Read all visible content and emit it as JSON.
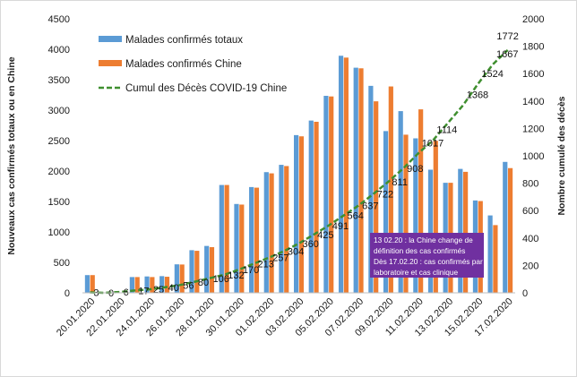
{
  "chart_data": {
    "type": "bar",
    "title": "",
    "categories": [
      "20.01.2020",
      "21.01.2020",
      "22.01.2020",
      "23.01.2020",
      "24.01.2020",
      "25.01.2020",
      "26.01.2020",
      "27.01.2020",
      "28.01.2020",
      "29.01.2020",
      "30.01.2020",
      "31.01.2020",
      "01.02.2020",
      "02.02.2020",
      "03.02.2020",
      "04.02.2020",
      "05.02.2020",
      "06.02.2020",
      "07.02.2020",
      "08.02.2020",
      "09.02.2020",
      "10.02.2020",
      "11.02.2020",
      "12.02.2020",
      "13.02.2020",
      "14.02.2020",
      "15.02.2020",
      "16.02.2020",
      "17.02.2020"
    ],
    "x_tick_labels": [
      "20.01.2020",
      "22.01.2020",
      "24.01.2020",
      "26.01.2020",
      "28.01.2020",
      "30.01.2020",
      "01.02.2020",
      "03.02.2020",
      "05.02.2020",
      "07.02.2020",
      "09.02.2020",
      "11.02.2020",
      "13.02.2020",
      "15.02.2020",
      "17.02.2020"
    ],
    "series": [
      {
        "name": "Malades confirmés totaux",
        "axis": "left",
        "kind": "bar",
        "color": "#5b9bd5",
        "values": [
          291,
          0,
          0,
          259,
          269,
          274,
          468,
          700,
          770,
          1771,
          1459,
          1737,
          1982,
          2102,
          2590,
          2829,
          3235,
          3893,
          3697,
          3399,
          2656,
          2984,
          2537,
          2022,
          1807,
          2035,
          1517,
          1271,
          2150
        ]
      },
      {
        "name": "Malades confirmés Chine",
        "axis": "left",
        "kind": "bar",
        "color": "#ed7d31",
        "values": [
          291,
          0,
          0,
          259,
          259,
          264,
          465,
          690,
          750,
          1771,
          1449,
          1727,
          1962,
          2082,
          2570,
          2809,
          3225,
          3863,
          3687,
          3145,
          3389,
          2597,
          3013,
          2497,
          1807,
          1987,
          1507,
          1112,
          2048
        ]
      },
      {
        "name": "Cumul des Décès COVID-19 Chine",
        "axis": "right",
        "kind": "line",
        "color": "#3f8f2f",
        "dashed": true,
        "values": [
          3,
          0,
          6,
          17,
          25,
          40,
          56,
          80,
          106,
          132,
          170,
          213,
          257,
          304,
          360,
          425,
          491,
          564,
          637,
          722,
          811,
          908,
          1017,
          1114,
          null,
          1368,
          1524,
          1667,
          1772
        ]
      }
    ],
    "y_left": {
      "label": "Nouveaux cas confirmés totaux ou en Chine",
      "min": 0,
      "max": 4500,
      "step": 500,
      "ticks": [
        "0",
        "500",
        "1000",
        "1500",
        "2000",
        "2500",
        "3000",
        "3500",
        "4000",
        "4500"
      ]
    },
    "y_right": {
      "label": "Nombre cumulé des décès",
      "min": 0,
      "max": 2000,
      "step": 200,
      "ticks": [
        "0",
        "200",
        "400",
        "600",
        "800",
        "1000",
        "1200",
        "1400",
        "1600",
        "1800",
        "2000"
      ]
    },
    "data_labels": [
      "3",
      "0",
      "6",
      "17",
      "25",
      "40",
      "56",
      "80",
      "106",
      "132",
      "170",
      "213",
      "257",
      "304",
      "360",
      "425",
      "491",
      "564",
      "637",
      "722",
      "811",
      "908",
      "1017",
      "1114",
      "1368",
      "1524",
      "1667",
      "1772"
    ],
    "legend_position": "top-left",
    "grid": false,
    "annotation": {
      "lines": [
        "13 02.20 : la Chine change de",
        "définition  des cas confirmés",
        "Dès 17.02.20 :  cas confirmés par",
        "laboratoire et cas clinique"
      ],
      "background": "#7030a0"
    }
  }
}
